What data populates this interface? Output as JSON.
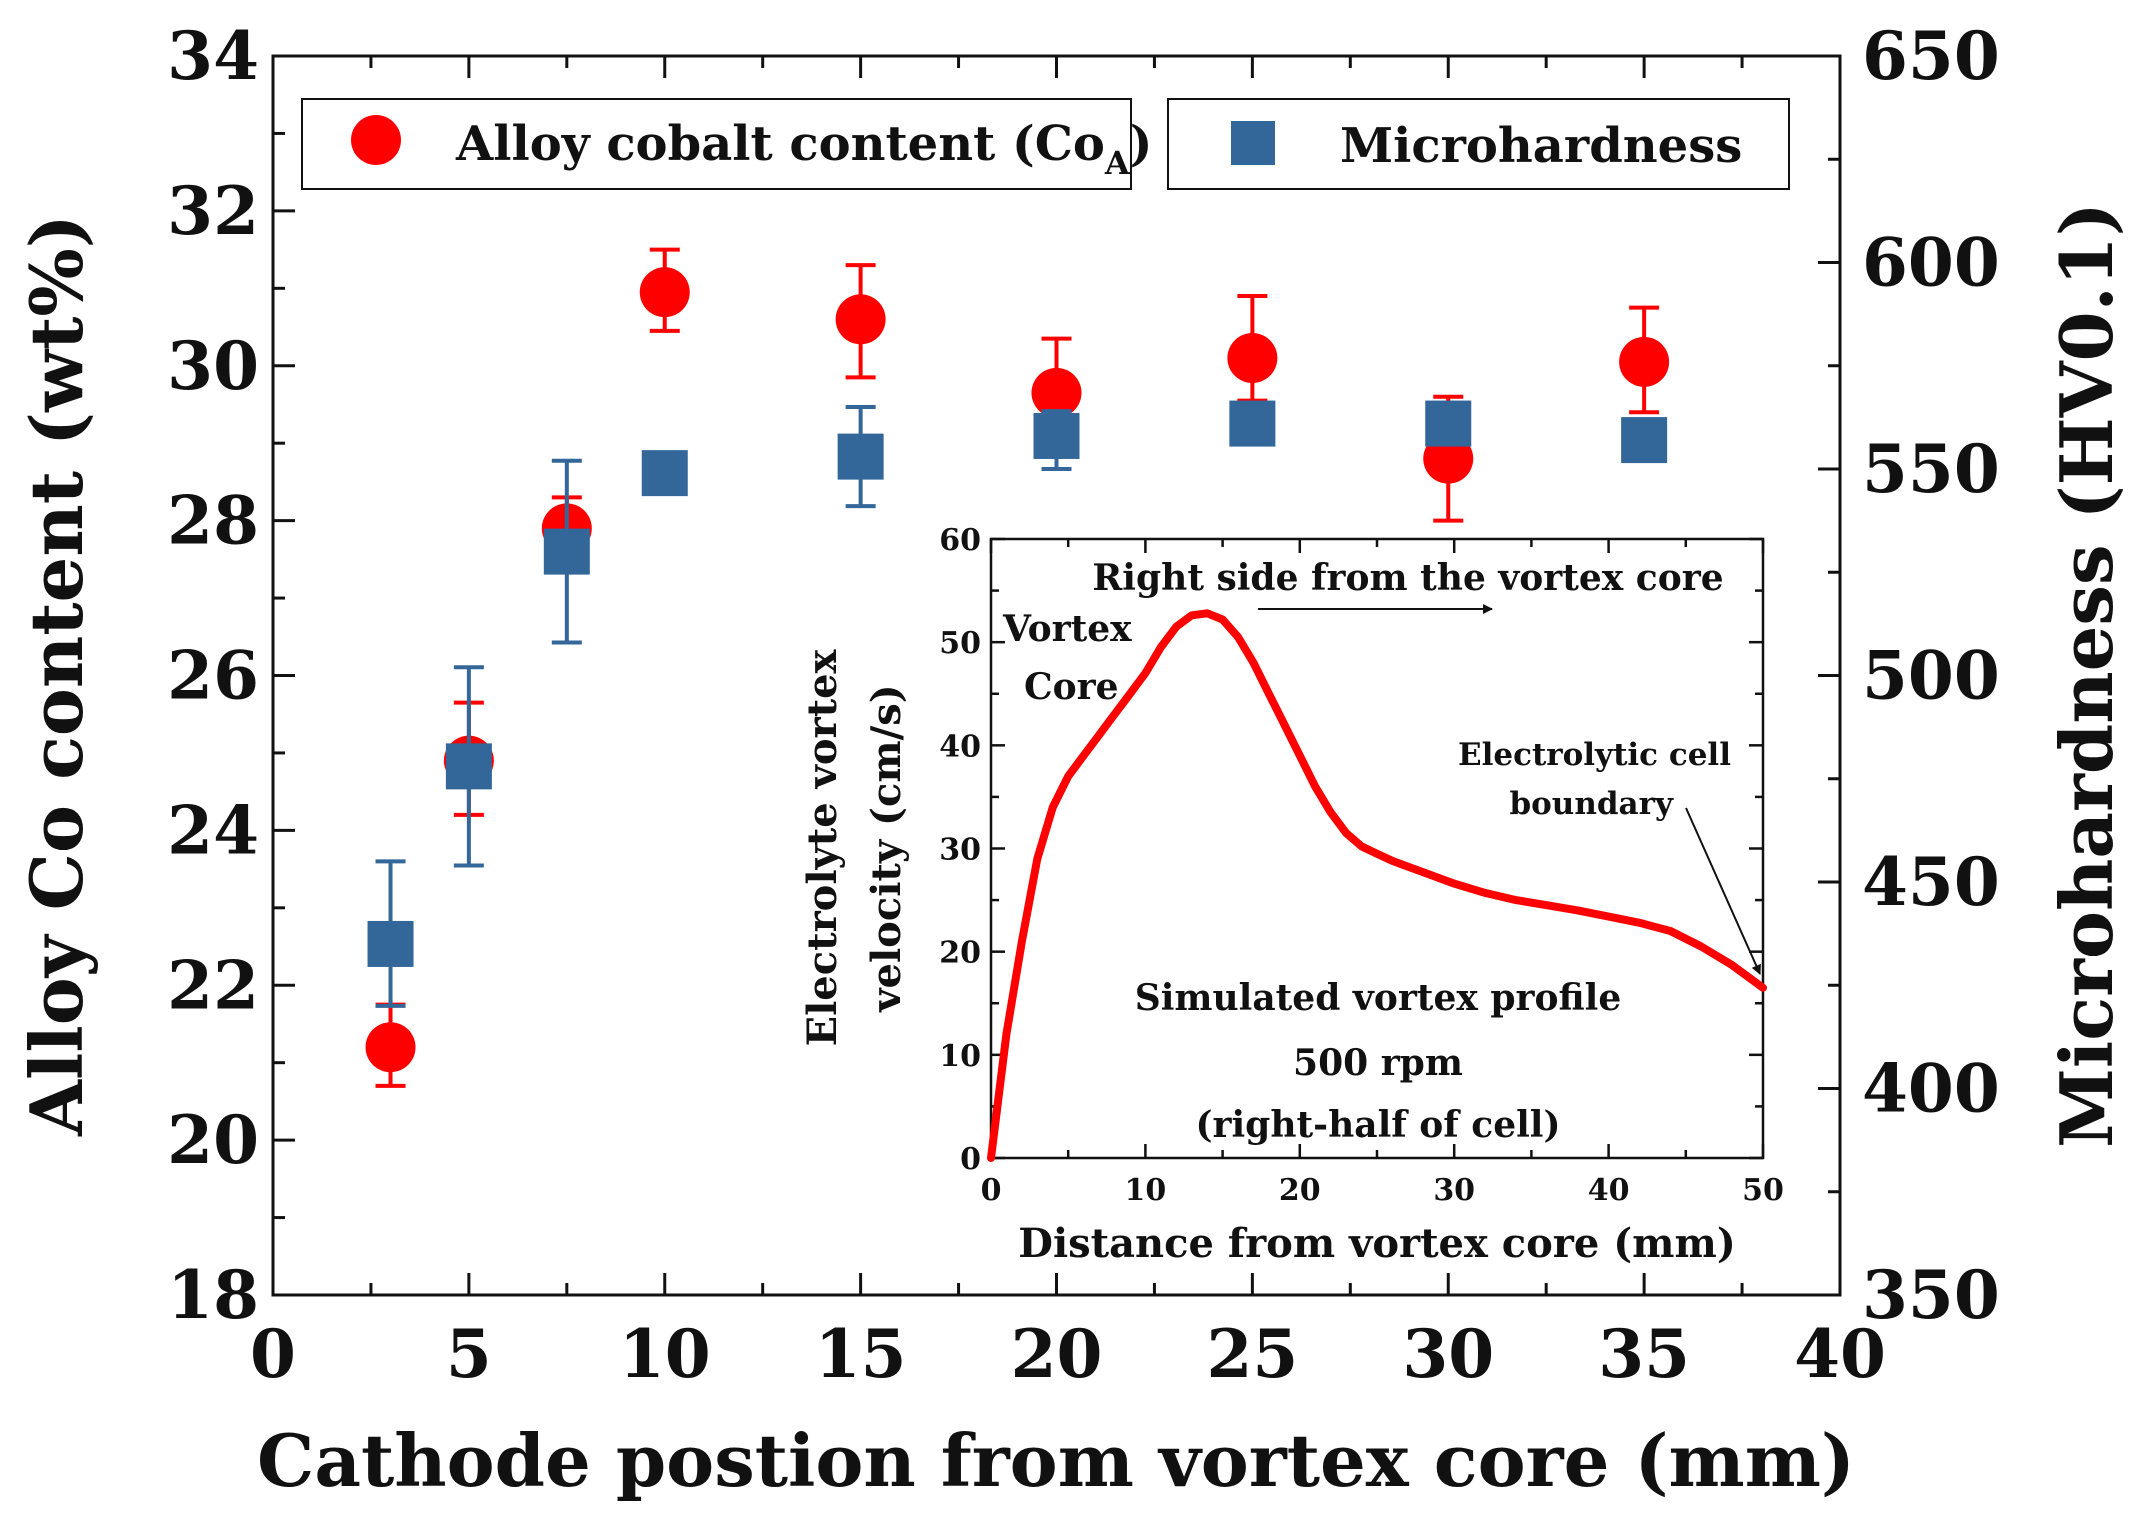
{
  "chart_data": [
    {
      "type": "scatter",
      "xlabel": "Cathode postion from vortex core (mm)",
      "ylabel": "Alloy Co content (wt%)",
      "y2label": "Microhardness (HV0.1)",
      "xlim": [
        0,
        40
      ],
      "ylim": [
        18,
        34
      ],
      "y2lim": [
        350,
        650
      ],
      "x_ticks": [
        0,
        5,
        10,
        15,
        20,
        25,
        30,
        35,
        40
      ],
      "y_ticks": [
        18,
        20,
        22,
        24,
        26,
        28,
        30,
        32,
        34
      ],
      "y2_ticks": [
        350,
        400,
        450,
        500,
        550,
        600,
        650
      ],
      "legend_placement": "top",
      "series": [
        {
          "name": "Alloy cobalt content (Co",
          "name_subscript": "A",
          "name_suffix": ")",
          "axis": "left",
          "marker": "circle",
          "color": "#ff0000",
          "points": [
            {
              "x": 3,
              "y": 21.2,
              "err_low": 0.5,
              "err_high": 0.55
            },
            {
              "x": 5,
              "y": 24.9,
              "err_low": 0.7,
              "err_high": 0.75
            },
            {
              "x": 7.5,
              "y": 27.9,
              "err_low": 0.2,
              "err_high": 0.4
            },
            {
              "x": 10,
              "y": 30.95,
              "err_low": 0.5,
              "err_high": 0.55
            },
            {
              "x": 15,
              "y": 30.6,
              "err_low": 0.75,
              "err_high": 0.7
            },
            {
              "x": 20,
              "y": 29.65,
              "err_low": 0.4,
              "err_high": 0.7
            },
            {
              "x": 25,
              "y": 30.1,
              "err_low": 0.55,
              "err_high": 0.8
            },
            {
              "x": 30,
              "y": 28.8,
              "err_low": 0.8,
              "err_high": 0.8
            },
            {
              "x": 35,
              "y": 30.05,
              "err_low": 0.65,
              "err_high": 0.7
            }
          ]
        },
        {
          "name": "Microhardness",
          "axis": "right",
          "marker": "square",
          "color": "#336699",
          "points": [
            {
              "x": 3,
              "y": 435,
              "err_low": 15,
              "err_high": 20
            },
            {
              "x": 5,
              "y": 478,
              "err_low": 24,
              "err_high": 24
            },
            {
              "x": 7.5,
              "y": 530,
              "err_low": 22,
              "err_high": 22
            },
            {
              "x": 10,
              "y": 549,
              "err_low": 3,
              "err_high": 3
            },
            {
              "x": 15,
              "y": 553,
              "err_low": 12,
              "err_high": 12
            },
            {
              "x": 20,
              "y": 558,
              "err_low": 8,
              "err_high": 6
            },
            {
              "x": 25,
              "y": 561,
              "err_low": 4,
              "err_high": 4
            },
            {
              "x": 30,
              "y": 561,
              "err_low": 5,
              "err_high": 5
            },
            {
              "x": 35,
              "y": 557,
              "err_low": 3,
              "err_high": 3
            }
          ]
        }
      ]
    },
    {
      "type": "line",
      "role": "inset",
      "xlabel": "Distance from vortex core (mm)",
      "ylabel_line1": "Electrolyte vortex",
      "ylabel_line2": "velocity (cm/s)",
      "xlim": [
        0,
        50
      ],
      "ylim": [
        0,
        60
      ],
      "x_ticks": [
        0,
        10,
        20,
        30,
        40,
        50
      ],
      "y_ticks": [
        0,
        10,
        20,
        30,
        40,
        50,
        60
      ],
      "color": "#ff0000",
      "series": [
        {
          "x": [
            0,
            0.5,
            1,
            2,
            3,
            4,
            5,
            6,
            7,
            8,
            9,
            10,
            11,
            12,
            13,
            14,
            15,
            16,
            17,
            18,
            19,
            20,
            21,
            22,
            23,
            24,
            25,
            26,
            28,
            30,
            32,
            34,
            36,
            38,
            40,
            42,
            44,
            46,
            48,
            50
          ],
          "y": [
            0,
            6,
            12,
            21,
            29,
            34,
            37,
            39,
            41,
            43,
            45,
            47,
            49.5,
            51.5,
            52.6,
            52.8,
            52.2,
            50.5,
            48,
            45,
            42,
            39,
            36,
            33.5,
            31.5,
            30.2,
            29.5,
            28.8,
            27.7,
            26.6,
            25.7,
            25,
            24.5,
            24,
            23.4,
            22.8,
            22,
            20.5,
            18.7,
            16.5
          ]
        }
      ],
      "annotations": {
        "top": "Right side from the vortex core",
        "core_line1": "Vortex",
        "core_line2": "Core",
        "boundary_line1": "Electrolytic cell",
        "boundary_line2": "boundary",
        "profile_line1": "Simulated vortex profile",
        "profile_line2": "500 rpm",
        "profile_line3": "(right-half of cell)"
      }
    }
  ]
}
